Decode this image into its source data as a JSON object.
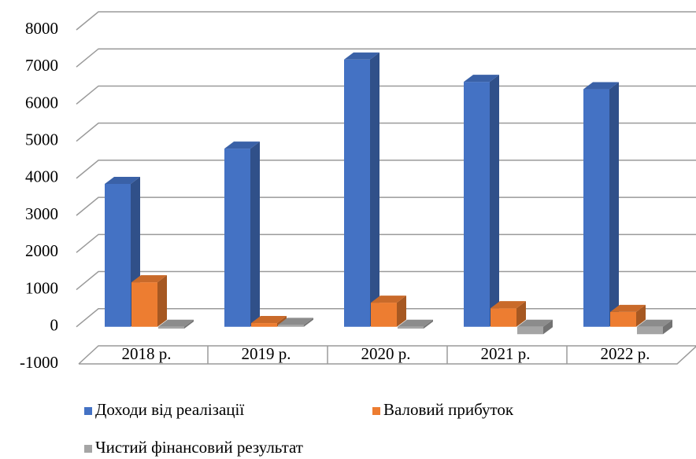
{
  "chart_data": {
    "type": "bar3d",
    "categories": [
      "2018 р.",
      "2019 р.",
      "2020 р.",
      "2021 р.",
      "2022 р."
    ],
    "series": [
      {
        "name": "Доходи від реалізації",
        "color": "#4472c4",
        "values": [
          3850,
          4800,
          7200,
          6600,
          6400
        ]
      },
      {
        "name": "Валовий прибуток",
        "color": "#ed7d31",
        "values": [
          1200,
          100,
          650,
          500,
          400
        ]
      },
      {
        "name": "Чистий фінансовий результат",
        "color": "#a5a5a5",
        "values": [
          -50,
          50,
          -50,
          -200,
          -200
        ]
      }
    ],
    "ylim": [
      -1000,
      8000
    ],
    "yticks": [
      -1000,
      0,
      1000,
      2000,
      3000,
      4000,
      5000,
      6000,
      7000,
      8000
    ],
    "grid": true,
    "legend": "bottom"
  }
}
